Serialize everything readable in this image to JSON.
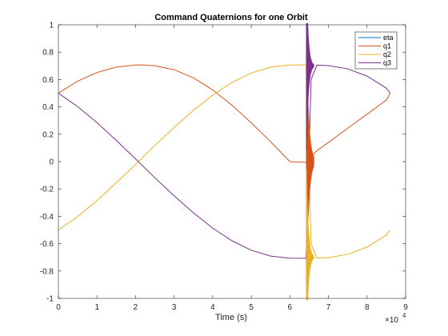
{
  "chart_data": {
    "type": "line",
    "title": "Command Quaternions for one Orbit",
    "xlabel": "Time (s)",
    "ylabel": "",
    "x_exponent_label": "×10",
    "x_exponent_power": "4",
    "xlim": [
      0,
      9
    ],
    "ylim": [
      -1,
      1
    ],
    "xticks": [
      0,
      1,
      2,
      3,
      4,
      5,
      6,
      7,
      8,
      9
    ],
    "yticks": [
      -1,
      -0.8,
      -0.6,
      -0.4,
      -0.2,
      0,
      0.2,
      0.4,
      0.6,
      0.8,
      1
    ],
    "xtick_labels": [
      "0",
      "1",
      "2",
      "3",
      "4",
      "5",
      "6",
      "7",
      "8",
      "9"
    ],
    "ytick_labels": [
      "-1",
      "-0.8",
      "-0.6",
      "-0.4",
      "-0.2",
      "0",
      "0.2",
      "0.4",
      "0.6",
      "0.8",
      "1"
    ],
    "x_units": "x10^4 s",
    "grid": false,
    "legend_position": "top-right",
    "series": [
      {
        "name": "eta",
        "color": "#0072BD",
        "x": [
          6.43,
          6.45,
          6.47
        ],
        "y": [
          -0.98,
          0.98,
          -0.98
        ]
      },
      {
        "name": "q1",
        "color": "#D95319",
        "x": [
          0,
          0.5,
          1.0,
          1.5,
          2.0,
          2.16,
          2.5,
          3.0,
          3.5,
          4.0,
          4.5,
          5.0,
          5.5,
          6.0,
          6.42,
          6.55,
          6.6,
          6.7,
          7.0,
          7.5,
          8.0,
          8.5,
          8.6
        ],
        "y": [
          0.5,
          0.588,
          0.651,
          0.691,
          0.706,
          0.707,
          0.7,
          0.672,
          0.612,
          0.524,
          0.412,
          0.283,
          0.145,
          0.0,
          -0.005,
          0.0,
          0.05,
          0.08,
          0.14,
          0.244,
          0.346,
          0.45,
          0.5
        ]
      },
      {
        "name": "q2",
        "color": "#EDB120",
        "x": [
          0,
          0.5,
          1.0,
          1.5,
          2.0,
          2.5,
          3.0,
          3.5,
          4.0,
          4.5,
          5.0,
          5.5,
          6.0,
          6.42,
          6.55,
          6.7,
          7.0,
          7.5,
          8.0,
          8.5,
          8.6
        ],
        "y": [
          -0.5,
          -0.402,
          -0.285,
          -0.155,
          -0.02,
          0.118,
          0.25,
          0.375,
          0.486,
          0.579,
          0.648,
          0.691,
          0.706,
          0.707,
          -0.6,
          -0.705,
          -0.702,
          -0.678,
          -0.625,
          -0.537,
          -0.5
        ]
      },
      {
        "name": "q3",
        "color": "#7E2F8E",
        "x": [
          0,
          0.5,
          1.0,
          1.5,
          2.0,
          2.5,
          3.0,
          3.5,
          4.0,
          4.5,
          5.0,
          5.5,
          6.0,
          6.42,
          6.55,
          6.7,
          7.0,
          7.5,
          8.0,
          8.5,
          8.6
        ],
        "y": [
          0.5,
          0.402,
          0.285,
          0.155,
          0.02,
          -0.118,
          -0.25,
          -0.375,
          -0.486,
          -0.579,
          -0.648,
          -0.691,
          -0.706,
          -0.707,
          0.6,
          0.705,
          0.702,
          0.678,
          0.625,
          0.537,
          0.5
        ]
      }
    ],
    "oscillation_band": {
      "x_start": 6.43,
      "x_end": 6.62,
      "description_series": [
        "q1",
        "q2",
        "q3",
        "eta"
      ]
    }
  }
}
